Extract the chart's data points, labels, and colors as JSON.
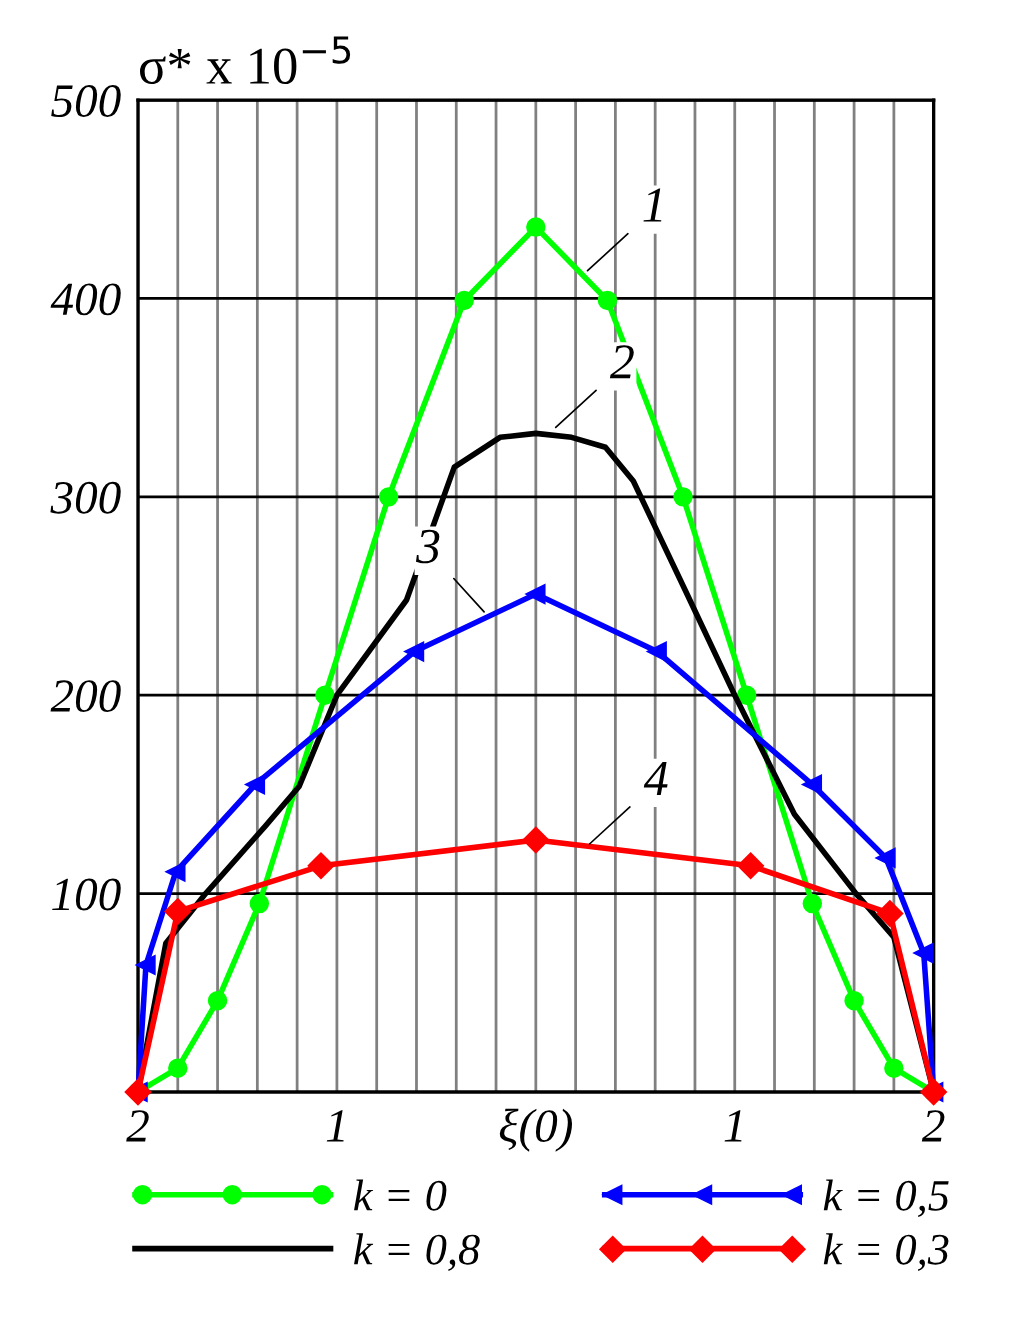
{
  "chart_data": {
    "type": "line",
    "ylabel": "σ* x 10$^{−5}$",
    "xlim": [
      -2,
      2
    ],
    "ylim": [
      0,
      500
    ],
    "xticks": [
      {
        "value": -2,
        "label": "2"
      },
      {
        "value": -1.8,
        "label": null
      },
      {
        "value": -1.6,
        "label": null
      },
      {
        "value": -1.4,
        "label": null
      },
      {
        "value": -1.2,
        "label": null
      },
      {
        "value": -1,
        "label": "1"
      },
      {
        "value": -0.8,
        "label": null
      },
      {
        "value": -0.6,
        "label": null
      },
      {
        "value": -0.4,
        "label": null
      },
      {
        "value": -0.2,
        "label": null
      },
      {
        "value": 0,
        "label": "ξ(0)"
      },
      {
        "value": 0.2,
        "label": null
      },
      {
        "value": 0.4,
        "label": null
      },
      {
        "value": 0.6,
        "label": null
      },
      {
        "value": 0.8,
        "label": null
      },
      {
        "value": 1,
        "label": "1"
      },
      {
        "value": 1.2,
        "label": null
      },
      {
        "value": 1.4,
        "label": null
      },
      {
        "value": 1.6,
        "label": null
      },
      {
        "value": 1.8,
        "label": null
      },
      {
        "value": 2,
        "label": "2"
      }
    ],
    "yticks": [
      100,
      200,
      300,
      400,
      500
    ],
    "grid": true,
    "legend": "bottom",
    "series": [
      {
        "name": "k = 0",
        "color": "#00ff00",
        "marker": "circle",
        "x": [
          -2,
          -1.8,
          -1.6,
          -1.39,
          -1.06,
          -0.74,
          -0.36,
          0,
          0.36,
          0.74,
          1.06,
          1.39,
          1.6,
          1.8,
          2
        ],
        "values": [
          0,
          12,
          46,
          95,
          200,
          300,
          399,
          436,
          399,
          300,
          200,
          95,
          46,
          12,
          0
        ]
      },
      {
        "name": "k = 0,8",
        "color": "#000000",
        "marker": "none",
        "x": [
          -2,
          -1.86,
          -1.66,
          -1.36,
          -1.19,
          -1,
          -0.65,
          -0.41,
          -0.18,
          0,
          0.18,
          0.35,
          0.49,
          0.76,
          1,
          1.3,
          1.61,
          1.8,
          2
        ],
        "values": [
          0,
          75,
          100,
          134,
          154,
          200,
          248,
          315,
          330,
          332,
          330,
          325,
          308,
          251,
          200,
          140,
          100,
          78,
          0
        ]
      },
      {
        "name": "k = 0,5",
        "color": "#0000ff",
        "marker": "triangle",
        "x": [
          -2,
          -1.96,
          -1.81,
          -1.41,
          -0.61,
          0,
          0.61,
          1.39,
          1.76,
          1.95,
          2
        ],
        "values": [
          0,
          64,
          111,
          155,
          222,
          251,
          222,
          155,
          118,
          70,
          0
        ]
      },
      {
        "name": "k = 0,3",
        "color": "#ff0000",
        "marker": "diamond",
        "x": [
          -2,
          -1.8,
          -1.08,
          0,
          1.08,
          1.78,
          2
        ],
        "values": [
          0,
          91,
          114,
          127,
          114,
          90,
          0
        ]
      }
    ],
    "annotations": [
      {
        "text": "1",
        "x": 0.26,
        "y": 414
      },
      {
        "text": "2",
        "x": 0.1,
        "y": 335
      },
      {
        "text": "3",
        "x": -0.26,
        "y": 242
      },
      {
        "text": "4",
        "x": 0.27,
        "y": 125
      }
    ]
  }
}
